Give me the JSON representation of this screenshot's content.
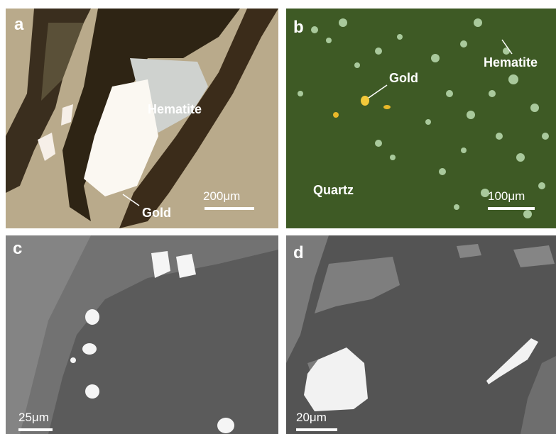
{
  "panels": [
    {
      "label": "a",
      "annotations": [
        "Hematite",
        "Gold"
      ],
      "scale_bar": "200μm"
    },
    {
      "label": "b",
      "annotations": [
        "Gold",
        "Hematite",
        "Quartz"
      ],
      "scale_bar": "100μm"
    },
    {
      "label": "c",
      "scale_bar": "25μm"
    },
    {
      "label": "d",
      "scale_bar": "20μm"
    }
  ]
}
